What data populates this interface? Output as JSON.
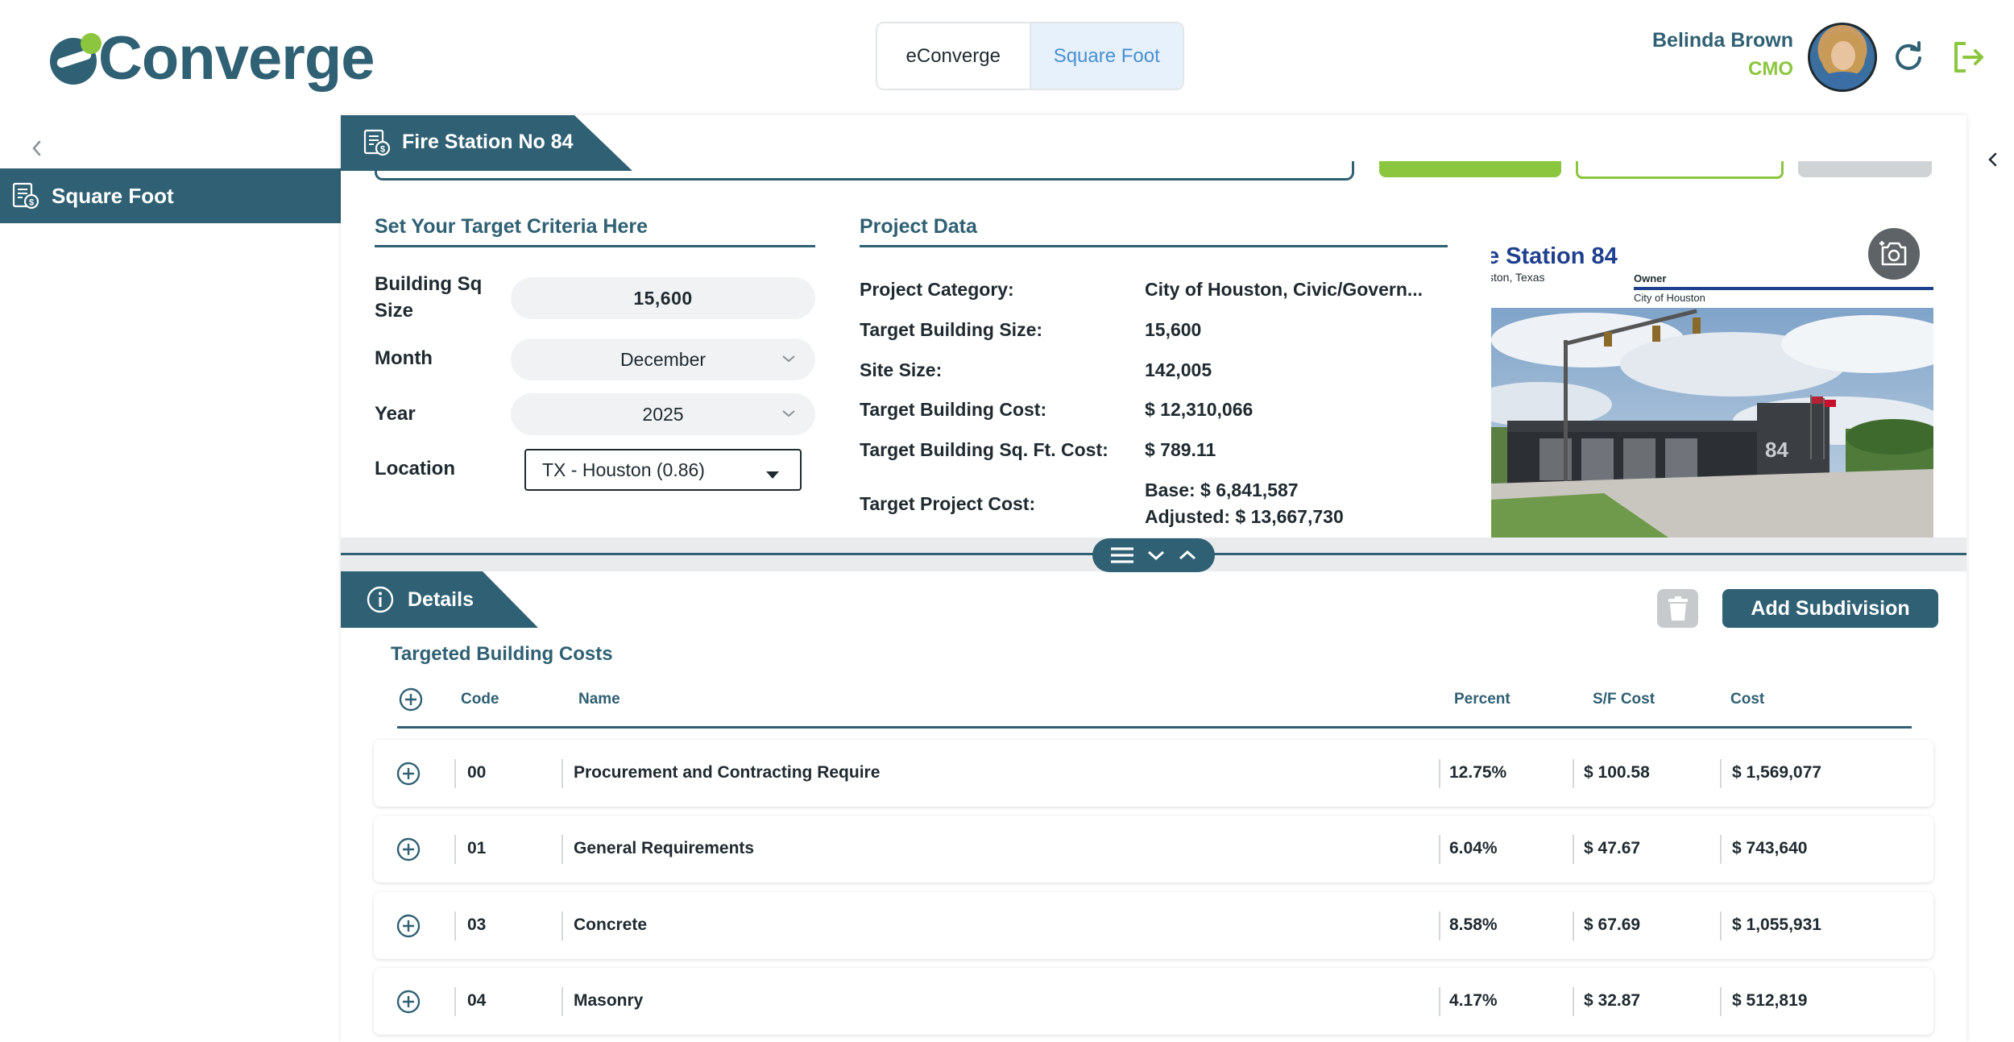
{
  "header": {
    "logo_text": "Converge",
    "mode_tabs": [
      {
        "label": "eConverge",
        "active": false
      },
      {
        "label": "Square Foot",
        "active": true
      }
    ],
    "user": {
      "name": "Belinda Brown",
      "role": "CMO"
    },
    "icons": {
      "refresh": "refresh-icon",
      "logout": "logout-icon"
    }
  },
  "sidebar": {
    "items": [
      {
        "label": "Square Foot",
        "icon": "estimate-icon",
        "active": true
      }
    ]
  },
  "project": {
    "title": "Fire Station No 84"
  },
  "criteria": {
    "title": "Set Your Target Criteria Here",
    "building_sq_size": {
      "label": "Building Sq Size",
      "value": "15,600"
    },
    "month": {
      "label": "Month",
      "value": "December"
    },
    "year": {
      "label": "Year",
      "value": "2025"
    },
    "location": {
      "label": "Location",
      "value": "TX - Houston (0.86)"
    }
  },
  "project_data": {
    "title": "Project Data",
    "rows": [
      {
        "label": "Project Category:",
        "value": "City of Houston, Civic/Govern..."
      },
      {
        "label": "Target Building Size:",
        "value": "15,600"
      },
      {
        "label": "Site Size:",
        "value": "142,005"
      },
      {
        "label": "Target Building Cost:",
        "value": "$ 12,310,066"
      },
      {
        "label": "Target Building Sq. Ft. Cost:",
        "value": "$ 789.11"
      },
      {
        "label": "Target Project Cost:",
        "base": "Base: $ 6,841,587",
        "adjusted": "Adjusted: $ 13,667,730"
      }
    ]
  },
  "photo": {
    "title": "e Station 84",
    "location": "ston, Texas",
    "owner_label": "Owner",
    "owner_value": "City of Houston",
    "building_number": "84"
  },
  "details": {
    "tab_label": "Details",
    "add_button": "Add Subdivision",
    "table_title": "Targeted Building Costs",
    "columns": [
      "Code",
      "Name",
      "Percent",
      "S/F Cost",
      "Cost"
    ],
    "rows": [
      {
        "code": "00",
        "name": "Procurement and Contracting Require",
        "percent": "12.75%",
        "sf_cost": "$ 100.58",
        "cost": "$ 1,569,077"
      },
      {
        "code": "01",
        "name": "General Requirements",
        "percent": "6.04%",
        "sf_cost": "$ 47.67",
        "cost": "$ 743,640"
      },
      {
        "code": "03",
        "name": "Concrete",
        "percent": "8.58%",
        "sf_cost": "$ 67.69",
        "cost": "$ 1,055,931"
      },
      {
        "code": "04",
        "name": "Masonry",
        "percent": "4.17%",
        "sf_cost": "$ 32.87",
        "cost": "$ 512,819"
      }
    ]
  },
  "colors": {
    "primary": "#2f6073",
    "accent": "#8cc63f",
    "active_tab_bg": "#e6f1fb",
    "active_tab_text": "#4a8fd1"
  }
}
